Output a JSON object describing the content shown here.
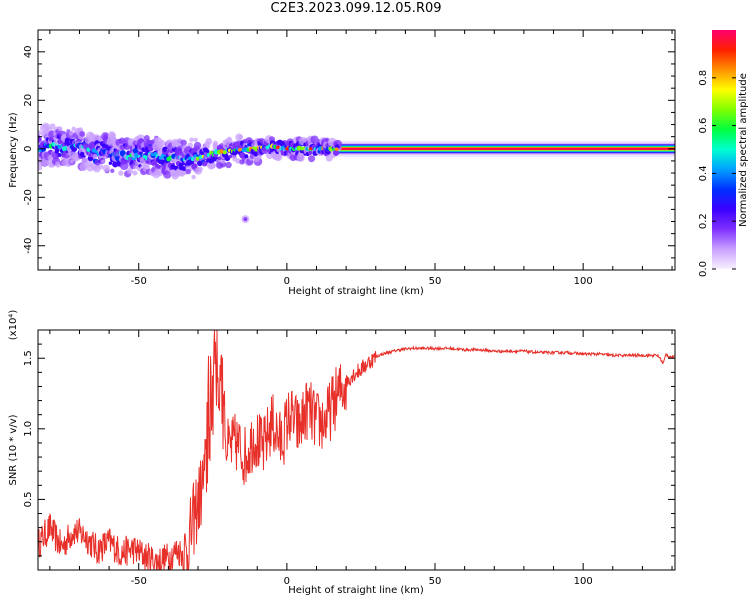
{
  "title": "C2E3.2023.099.12.05.R09",
  "colors": {
    "snr_line": "#e8302a",
    "axis": "#000000",
    "background": "#ffffff"
  },
  "chart_data": [
    {
      "type": "heatmap",
      "xlabel": "Height of straight line (km)",
      "ylabel": "Frequency (Hz)",
      "xlim": [
        -84,
        131
      ],
      "ylim": [
        -50,
        49
      ],
      "xticks": [
        -50,
        0,
        50,
        100
      ],
      "yticks": [
        -40,
        -20,
        0,
        20,
        40
      ],
      "colorbar": {
        "label": "Normalized spectral amplitude",
        "range": [
          0,
          1
        ],
        "ticks": [
          "0.0",
          "0.2",
          "0.4",
          "0.6",
          "0.8"
        ],
        "colormap": [
          "#f7f0ff",
          "#c9a0ff",
          "#7f30ff",
          "#3a00ff",
          "#0030ff",
          "#00a0ff",
          "#00ffd0",
          "#00ff40",
          "#80ff00",
          "#ffff00",
          "#ff9000",
          "#ff2000",
          "#ff0070"
        ]
      },
      "ridge": [
        {
          "x": -82,
          "freq": 2
        },
        {
          "x": -75,
          "freq": 1
        },
        {
          "x": -68,
          "freq": 0
        },
        {
          "x": -60,
          "freq": -2
        },
        {
          "x": -52,
          "freq": -3
        },
        {
          "x": -45,
          "freq": -3
        },
        {
          "x": -40,
          "freq": -4
        },
        {
          "x": -35,
          "freq": -4
        },
        {
          "x": -30,
          "freq": -4
        },
        {
          "x": -25,
          "freq": -2
        },
        {
          "x": -20,
          "freq": -1
        },
        {
          "x": -12,
          "freq": 0
        },
        {
          "x": -5,
          "freq": 1
        },
        {
          "x": 0,
          "freq": 0
        },
        {
          "x": 10,
          "freq": 0
        },
        {
          "x": 16,
          "freq": 0
        },
        {
          "x": 60,
          "freq": 0
        },
        {
          "x": 100,
          "freq": 0
        },
        {
          "x": 130,
          "freq": 0
        }
      ],
      "isolated_blob": {
        "x": -14,
        "freq": -29
      }
    },
    {
      "type": "line",
      "xlabel": "Height of straight line (km)",
      "ylabel": "SNR (10 * v/v)",
      "yscale_label": "(x10⁴)",
      "xlim": [
        -84,
        131
      ],
      "ylim": [
        0.0,
        1.7
      ],
      "xticks": [
        -50,
        0,
        50,
        100
      ],
      "yticks": [
        "0.5",
        "1.0",
        "1.5"
      ],
      "series": [
        {
          "x": [
            -84,
            -80,
            -76,
            -72,
            -68,
            -64,
            -60,
            -56,
            -52,
            -48,
            -44,
            -40,
            -37,
            -34,
            -31,
            -29,
            -27,
            -25,
            -24,
            -22,
            -20,
            -17,
            -14,
            -11,
            -8,
            -5,
            -2,
            1,
            4,
            7,
            10,
            13,
            16,
            19,
            22,
            25,
            28,
            31,
            34,
            38,
            42,
            46,
            50,
            55,
            60,
            65,
            70,
            75,
            80,
            85,
            90,
            95,
            100,
            105,
            110,
            115,
            120,
            125,
            126,
            127,
            128,
            129,
            131
          ],
          "y": [
            0.18,
            0.3,
            0.16,
            0.28,
            0.24,
            0.14,
            0.2,
            0.12,
            0.15,
            0.1,
            0.06,
            0.09,
            0.14,
            0.1,
            0.4,
            0.55,
            0.75,
            1.15,
            1.4,
            1.2,
            0.85,
            0.9,
            0.8,
            0.95,
            0.85,
            1.05,
            0.9,
            1.1,
            1.0,
            1.15,
            1.05,
            1.05,
            1.2,
            1.3,
            1.38,
            1.42,
            1.48,
            1.52,
            1.54,
            1.56,
            1.57,
            1.57,
            1.57,
            1.57,
            1.56,
            1.56,
            1.55,
            1.55,
            1.55,
            1.54,
            1.54,
            1.54,
            1.53,
            1.53,
            1.52,
            1.52,
            1.52,
            1.52,
            1.5,
            1.46,
            1.53,
            1.51,
            1.51
          ]
        }
      ]
    }
  ]
}
